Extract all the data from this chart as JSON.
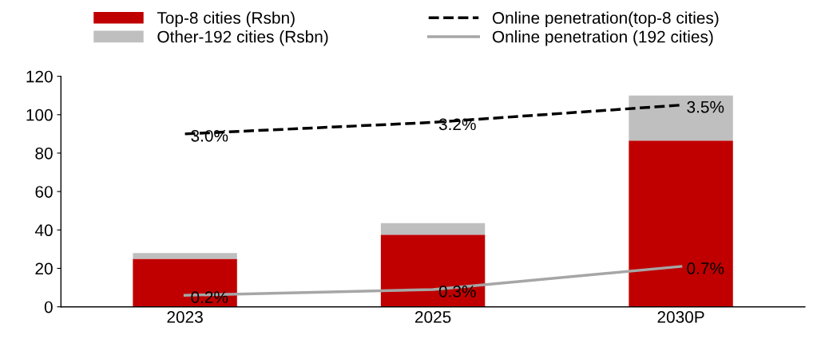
{
  "chart_data": {
    "type": "bar",
    "stacked": true,
    "categories": [
      "2023",
      "2025",
      "2030P"
    ],
    "series": [
      {
        "name": "Top-8 cities (Rsbn)",
        "color": "#c00000",
        "values": [
          25,
          37.5,
          86.5
        ]
      },
      {
        "name": "Other-192 cities (Rsbn)",
        "color": "#bfbfbf",
        "values": [
          3,
          6,
          23.5
        ]
      },
      {
        "name": "Online penetration(top-8 cities)",
        "type": "line",
        "axis": "y2",
        "color": "#000000",
        "line_style": "dashed",
        "values": [
          3.0,
          3.2,
          3.5
        ],
        "value_labels": [
          "3.0%",
          "3.2%",
          "3.5%"
        ]
      },
      {
        "name": "Online penetration (192 cities)",
        "type": "line",
        "axis": "y2",
        "color": "#a6a6a6",
        "line_style": "solid",
        "values": [
          0.2,
          0.3,
          0.7
        ],
        "value_labels": [
          "0.2%",
          "0.3%",
          "0.7%"
        ]
      }
    ],
    "ylim": [
      0,
      120
    ],
    "yticks": [
      0,
      20,
      40,
      60,
      80,
      100,
      120
    ],
    "y2lim": [
      0,
      4
    ],
    "grid": false,
    "legend": "top",
    "marker": "none"
  }
}
